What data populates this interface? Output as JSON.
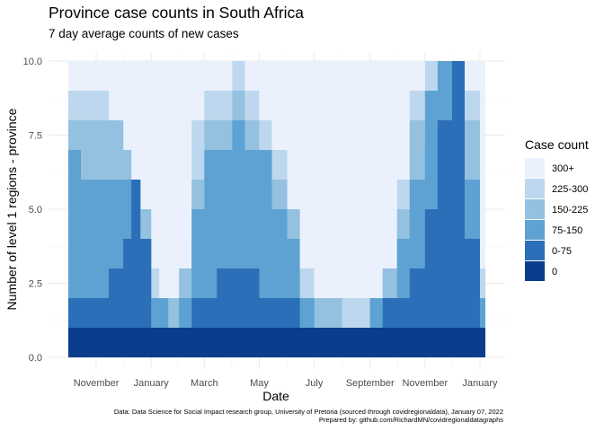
{
  "chart_data": {
    "type": "area",
    "title": "Province case counts in South Africa",
    "subtitle": "7 day average counts of new cases",
    "xlabel": "Date",
    "ylabel": "Number of level 1 regions - province",
    "caption_lines": [
      "Data: Data Science for Social Impact research group, University of Pretoria (sourced through covidregionaldata), January 07, 2022",
      "Prepared by: github.com/RichardMN/covidregionaldatagraphs"
    ],
    "x_ticks": [
      "November",
      "January",
      "March",
      "May",
      "July",
      "September",
      "November",
      "January"
    ],
    "x_tick_dates": [
      "2020-11-01",
      "2021-01-01",
      "2021-03-01",
      "2021-05-01",
      "2021-07-01",
      "2021-09-01",
      "2021-11-01",
      "2022-01-01"
    ],
    "xlim": [
      "2020-10-01",
      "2022-01-07"
    ],
    "ylim": [
      0,
      10
    ],
    "y_ticks": [
      "0.0",
      "2.5",
      "5.0",
      "7.5",
      "10.0"
    ],
    "legend": {
      "title": "Case count",
      "position": "right",
      "entries": [
        {
          "label": "300+",
          "color": "#eaf1fc"
        },
        {
          "label": "225-300",
          "color": "#bdd7ee"
        },
        {
          "label": "150-225",
          "color": "#94c1e0"
        },
        {
          "label": "75-150",
          "color": "#5ea2d3"
        },
        {
          "label": "0-75",
          "color": "#2b6fb8"
        },
        {
          "label": "0",
          "color": "#0c3d8c"
        }
      ]
    },
    "stack_order_bottom_to_top": [
      "0",
      "0-75",
      "75-150",
      "150-225",
      "225-300",
      "300+"
    ],
    "cumulative_boundaries": {
      "x": [
        "2020-10-01",
        "2020-10-15",
        "2020-11-01",
        "2020-11-15",
        "2020-12-01",
        "2020-12-10",
        "2020-12-20",
        "2021-01-01",
        "2021-01-10",
        "2021-01-20",
        "2021-02-01",
        "2021-02-15",
        "2021-03-01",
        "2021-03-15",
        "2021-04-01",
        "2021-04-15",
        "2021-05-01",
        "2021-05-15",
        "2021-06-01",
        "2021-06-15",
        "2021-07-01",
        "2021-07-15",
        "2021-08-01",
        "2021-08-15",
        "2021-09-01",
        "2021-09-15",
        "2021-10-01",
        "2021-10-15",
        "2021-11-01",
        "2021-11-15",
        "2021-12-01",
        "2021-12-15",
        "2022-01-01",
        "2022-01-07"
      ],
      "zero_top": [
        1,
        1,
        1,
        1,
        1,
        1,
        1,
        1,
        1,
        1,
        1,
        1,
        1,
        1,
        1,
        1,
        1,
        1,
        1,
        1,
        1,
        1,
        1,
        1,
        1,
        1,
        1,
        1,
        1,
        1,
        1,
        1,
        1,
        1
      ],
      "low_top": [
        2,
        2,
        2,
        3,
        4,
        6,
        4,
        1,
        1,
        1,
        1,
        2,
        2,
        3,
        3,
        3,
        2,
        2,
        2,
        1,
        1,
        1,
        1,
        1,
        1,
        2,
        2,
        3,
        5,
        8,
        10,
        4,
        1,
        1
      ],
      "mid_top": [
        4,
        5,
        4,
        5,
        5,
        6,
        4,
        2,
        1,
        1,
        2,
        4,
        5,
        6,
        7,
        6,
        5,
        4,
        3,
        2,
        1,
        1,
        1,
        1,
        2,
        2,
        3,
        5,
        7,
        9,
        10,
        4,
        1,
        1
      ],
      "high_top": [
        7,
        6,
        6,
        6,
        6,
        6,
        4,
        2,
        2,
        1,
        2,
        5,
        7,
        7,
        8,
        7,
        7,
        5,
        4,
        2,
        1,
        1,
        1,
        1,
        2,
        2,
        4,
        6,
        9,
        10,
        10,
        6,
        2,
        1
      ],
      "vhigh_top": [
        8,
        8,
        8,
        8,
        7,
        6,
        5,
        2,
        2,
        2,
        3,
        6,
        8,
        8,
        9,
        8,
        7,
        6,
        5,
        2,
        2,
        2,
        1,
        1,
        2,
        3,
        5,
        8,
        9,
        10,
        10,
        8,
        2,
        2
      ],
      "xhigh_top": [
        9,
        9,
        9,
        8,
        7,
        6,
        5,
        3,
        2,
        2,
        3,
        8,
        9,
        9,
        10,
        9,
        8,
        7,
        5,
        3,
        2,
        2,
        2,
        2,
        2,
        3,
        6,
        9,
        10,
        10,
        10,
        9,
        3,
        4
      ],
      "all_top": [
        10,
        10,
        10,
        10,
        10,
        10,
        10,
        10,
        10,
        10,
        10,
        10,
        10,
        10,
        10,
        10,
        10,
        10,
        10,
        10,
        10,
        10,
        10,
        10,
        10,
        10,
        10,
        10,
        10,
        10,
        10,
        10,
        10,
        10
      ]
    }
  }
}
